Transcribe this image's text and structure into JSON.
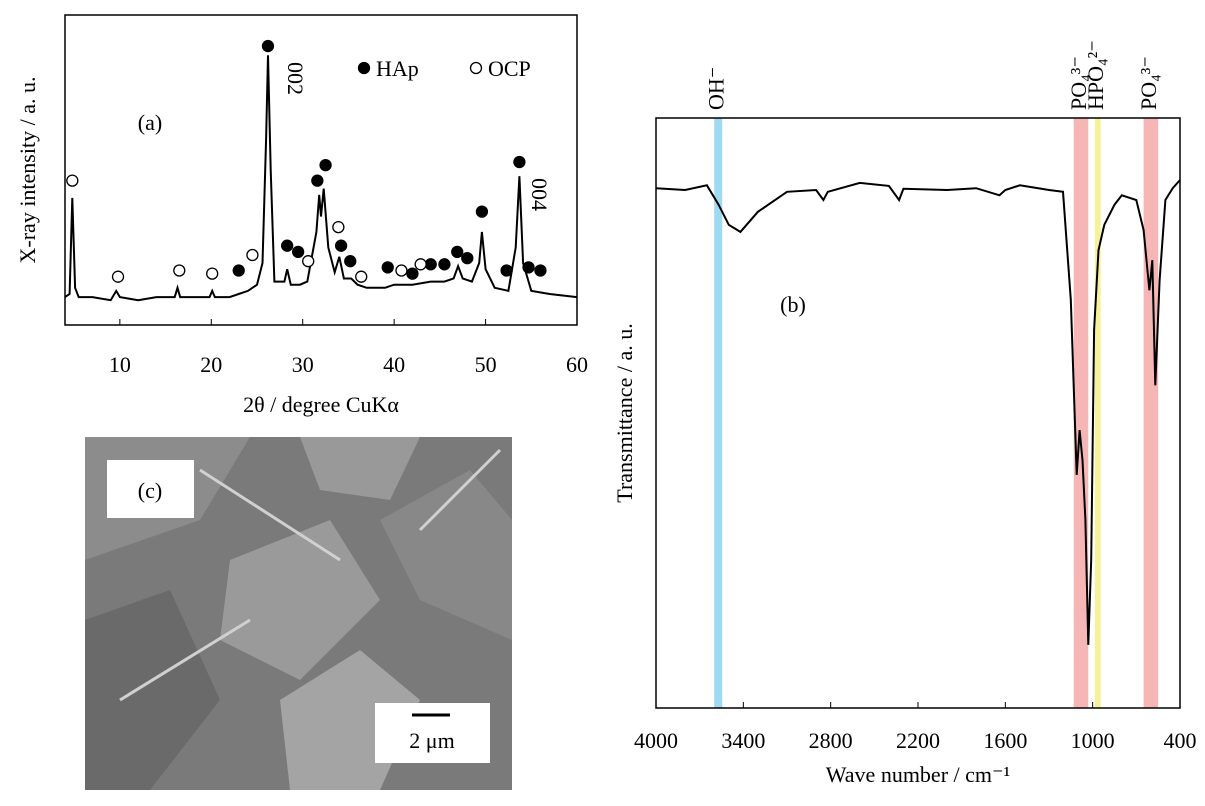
{
  "chart_data": [
    {
      "type": "line",
      "ylabel": "X-ray intensity / a. u.",
      "xlabel": "2θ / degree CuKα",
      "annotations": [
        "(a)",
        "002",
        "004"
      ],
      "xlim": [
        4,
        60
      ],
      "xticks": [
        10,
        20,
        30,
        40,
        50,
        60
      ],
      "ylim": [
        0,
        100
      ],
      "color": "#000000",
      "x": [
        4,
        4.5,
        4.8,
        5.1,
        5.5,
        7,
        9,
        9.6,
        10,
        12,
        14,
        16,
        16.3,
        16.6,
        18,
        19.8,
        20.1,
        20.4,
        22,
        23,
        24,
        25,
        25.6,
        26,
        26.2,
        26.5,
        26.9,
        28,
        28.3,
        28.7,
        29.7,
        30.5,
        31.5,
        31.8,
        32,
        32.3,
        32.8,
        33.5,
        34,
        34.5,
        35.3,
        36,
        37,
        39,
        40,
        42,
        44,
        45.5,
        46.5,
        47,
        47.5,
        48.5,
        49.3,
        49.6,
        50,
        51,
        52.5,
        53.3,
        53.7,
        54.1,
        55,
        57,
        60
      ],
      "values": [
        9,
        10,
        41,
        12,
        9,
        9,
        8,
        11,
        9,
        8,
        9,
        9,
        12,
        9,
        9,
        9,
        11,
        9,
        9,
        10,
        11,
        13,
        20,
        60,
        87,
        50,
        14,
        14,
        18,
        13,
        13,
        14,
        30,
        42,
        35,
        44,
        25,
        17,
        22,
        15,
        15,
        13,
        12,
        12,
        13,
        13,
        14,
        14,
        15,
        19,
        15,
        14,
        20,
        30,
        18,
        12,
        11,
        25,
        48,
        20,
        11,
        10,
        9
      ],
      "series": [
        {
          "name": "HAp",
          "marker": "filled",
          "color": "#000000",
          "x": [
            23,
            26.2,
            28.3,
            29.5,
            31.6,
            32.5,
            34.2,
            35.2,
            39.3,
            42,
            44,
            45.5,
            46.9,
            48,
            49.6,
            52.3,
            53.7,
            54.7,
            56
          ],
          "values": [
            15,
            87.4,
            23,
            21,
            44,
            49,
            23,
            18,
            16,
            14,
            17,
            17,
            21,
            19,
            34,
            15,
            50,
            16,
            15
          ]
        },
        {
          "name": "OCP",
          "marker": "open",
          "color": "#000000",
          "x": [
            4.8,
            9.8,
            16.5,
            20.1,
            24.5,
            30.6,
            33.9,
            36.4,
            40.8,
            42.9
          ],
          "values": [
            44,
            13,
            15,
            14,
            20,
            18,
            29,
            13,
            15,
            17
          ]
        }
      ]
    },
    {
      "type": "line",
      "ylabel": "Transmittance / a. u.",
      "xlabel": "Wave number / cm⁻¹",
      "annotations": [
        "(b)"
      ],
      "xlim": [
        4000,
        400
      ],
      "xticks": [
        4000,
        3400,
        2800,
        2200,
        1600,
        1000,
        400
      ],
      "ylim": [
        0,
        100
      ],
      "color": "#000000",
      "bands": [
        {
          "label": "OH⁻",
          "range": [
            3600,
            3545
          ],
          "color": "#9fd9f2"
        },
        {
          "label": "PO₄³⁻",
          "range": [
            1130,
            1030
          ],
          "color": "#f7b6b6"
        },
        {
          "label": "HPO₄²⁻",
          "range": [
            985,
            945
          ],
          "color": "#f7f29a"
        },
        {
          "label": "PO₄³⁻",
          "range": [
            650,
            550
          ],
          "color": "#f7b6b6"
        }
      ],
      "x": [
        4000,
        3800,
        3650,
        3570,
        3500,
        3420,
        3300,
        3100,
        2900,
        2850,
        2820,
        2600,
        2400,
        2330,
        2300,
        2000,
        1800,
        1640,
        1600,
        1500,
        1300,
        1204,
        1150,
        1110,
        1090,
        1070,
        1050,
        1030,
        1010,
        990,
        960,
        920,
        850,
        800,
        700,
        650,
        610,
        590,
        570,
        540,
        500,
        450,
        400
      ],
      "values": [
        88.1,
        87.8,
        88.6,
        85.3,
        81.9,
        80.7,
        84.1,
        87.5,
        87.8,
        86.1,
        87.5,
        89.0,
        88.5,
        86.1,
        88.0,
        87.8,
        88.1,
        86.9,
        87.8,
        88.6,
        87.8,
        87.5,
        69.2,
        39.5,
        47.1,
        42.0,
        31.9,
        10.7,
        25.1,
        64.1,
        77.6,
        81.9,
        85.3,
        86.9,
        86.1,
        81.0,
        70.8,
        75.9,
        54.7,
        72.5,
        86.1,
        88.1,
        89.5
      ]
    }
  ],
  "image": {
    "label": "(c)",
    "scale_bar": "2 μm"
  }
}
